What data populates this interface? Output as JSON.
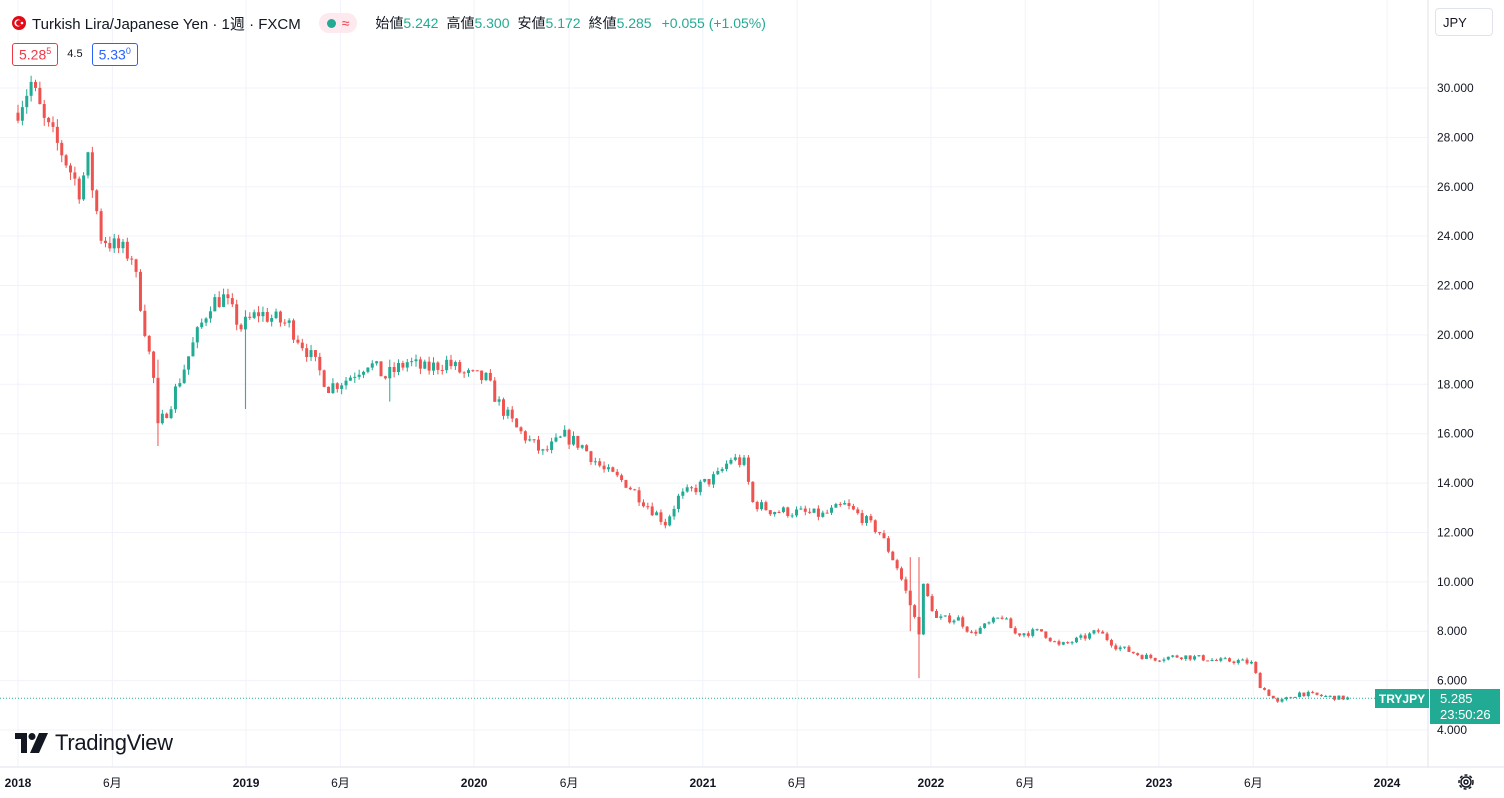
{
  "header": {
    "symbol_title": "Turkish Lira/Japanese Yen · 1週 · FXCM",
    "status_wave": "≈",
    "ohlc": [
      {
        "label": "始値",
        "value": "5.242"
      },
      {
        "label": "高値",
        "value": "5.300"
      },
      {
        "label": "安値",
        "value": "5.172"
      },
      {
        "label": "終値",
        "value": "5.285"
      }
    ],
    "change": "+0.055 (+1.05%)"
  },
  "trade": {
    "sell_main": "5.28",
    "sell_sup": "5",
    "spread": "4.5",
    "buy_main": "5.33",
    "buy_sup": "0"
  },
  "currency_button": "JPY",
  "brand": "TradingView",
  "price_tag": {
    "symbol": "TRYJPY",
    "price": "5.285",
    "countdown": "23:50:26"
  },
  "colors": {
    "up": "#22ab94",
    "down": "#ef5350",
    "grid": "#f0f3fa",
    "last_line": "#22ab94",
    "sell": "#f23645",
    "buy": "#2962ff"
  },
  "chart_data": {
    "type": "candlestick",
    "series_name": "",
    "y_range": [
      3.0,
      32.0
    ],
    "y_ticks": [
      4,
      6,
      8,
      10,
      12,
      14,
      16,
      18,
      20,
      22,
      24,
      26,
      28,
      30
    ],
    "y_tick_labels": [
      "4.000",
      "6.000",
      "8.000",
      "10.000",
      "12.000",
      "14.000",
      "16.000",
      "18.000",
      "20.000",
      "22.000",
      "24.000",
      "26.000",
      "28.000",
      "30.000"
    ],
    "x_range": [
      "2018-01-01",
      "2024-03-01"
    ],
    "x_ticks": [
      {
        "date": "2018-01-01",
        "label": "2018",
        "bold": true
      },
      {
        "date": "2018-06-01",
        "label": "6月",
        "bold": false
      },
      {
        "date": "2019-01-01",
        "label": "2019",
        "bold": true
      },
      {
        "date": "2019-06-01",
        "label": "6月",
        "bold": false
      },
      {
        "date": "2020-01-01",
        "label": "2020",
        "bold": true
      },
      {
        "date": "2020-06-01",
        "label": "6月",
        "bold": false
      },
      {
        "date": "2021-01-01",
        "label": "2021",
        "bold": true
      },
      {
        "date": "2021-06-01",
        "label": "6月",
        "bold": false
      },
      {
        "date": "2022-01-01",
        "label": "2022",
        "bold": true
      },
      {
        "date": "2022-06-01",
        "label": "6月",
        "bold": false
      },
      {
        "date": "2023-01-01",
        "label": "2023",
        "bold": true
      },
      {
        "date": "2023-06-01",
        "label": "6月",
        "bold": false
      },
      {
        "date": "2024-01-01",
        "label": "2024",
        "bold": true
      }
    ],
    "last_price": 5.285,
    "close_anchors": [
      [
        "2018-01-01",
        29.2
      ],
      [
        "2018-01-22",
        30.2
      ],
      [
        "2018-02-12",
        28.6
      ],
      [
        "2018-03-12",
        27.4
      ],
      [
        "2018-04-09",
        25.9
      ],
      [
        "2018-04-23",
        27.0
      ],
      [
        "2018-05-14",
        24.0
      ],
      [
        "2018-06-04",
        23.6
      ],
      [
        "2018-07-02",
        23.2
      ],
      [
        "2018-07-16",
        21.3
      ],
      [
        "2018-08-06",
        18.2
      ],
      [
        "2018-08-13",
        16.2
      ],
      [
        "2018-09-03",
        17.3
      ],
      [
        "2018-10-08",
        19.6
      ],
      [
        "2018-11-05",
        21.3
      ],
      [
        "2018-11-26",
        21.5
      ],
      [
        "2018-12-24",
        20.3
      ],
      [
        "2019-01-21",
        20.9
      ],
      [
        "2019-03-11",
        20.4
      ],
      [
        "2019-04-08",
        19.4
      ],
      [
        "2019-05-13",
        17.9
      ],
      [
        "2019-06-10",
        18.2
      ],
      [
        "2019-07-15",
        18.9
      ],
      [
        "2019-08-12",
        18.3
      ],
      [
        "2019-09-16",
        18.9
      ],
      [
        "2019-10-14",
        18.6
      ],
      [
        "2019-11-18",
        18.9
      ],
      [
        "2019-12-16",
        18.4
      ],
      [
        "2020-01-20",
        18.2
      ],
      [
        "2020-02-10",
        17.2
      ],
      [
        "2020-03-09",
        16.2
      ],
      [
        "2020-04-20",
        15.2
      ],
      [
        "2020-05-25",
        15.9
      ],
      [
        "2020-06-22",
        15.5
      ],
      [
        "2020-07-27",
        14.5
      ],
      [
        "2020-08-31",
        14.0
      ],
      [
        "2020-10-05",
        13.1
      ],
      [
        "2020-11-02",
        12.4
      ],
      [
        "2020-11-23",
        13.4
      ],
      [
        "2020-12-21",
        13.8
      ],
      [
        "2021-01-25",
        14.3
      ],
      [
        "2021-02-15",
        15.0
      ],
      [
        "2021-03-08",
        14.8
      ],
      [
        "2021-03-22",
        13.2
      ],
      [
        "2021-04-19",
        12.9
      ],
      [
        "2021-06-07",
        12.8
      ],
      [
        "2021-07-12",
        12.7
      ],
      [
        "2021-08-16",
        13.1
      ],
      [
        "2021-09-13",
        12.6
      ],
      [
        "2021-10-11",
        12.0
      ],
      [
        "2021-11-08",
        10.6
      ],
      [
        "2021-11-22",
        9.6
      ],
      [
        "2021-12-13",
        8.0
      ],
      [
        "2021-12-20",
        9.8
      ],
      [
        "2022-01-10",
        8.5
      ],
      [
        "2022-02-14",
        8.5
      ],
      [
        "2022-03-07",
        7.9
      ],
      [
        "2022-04-25",
        8.6
      ],
      [
        "2022-05-16",
        7.9
      ],
      [
        "2022-06-27",
        8.0
      ],
      [
        "2022-07-25",
        7.4
      ],
      [
        "2022-08-29",
        7.7
      ],
      [
        "2022-09-26",
        8.0
      ],
      [
        "2022-10-24",
        7.4
      ],
      [
        "2022-12-05",
        7.0
      ],
      [
        "2022-12-26",
        6.9
      ],
      [
        "2023-02-06",
        7.0
      ],
      [
        "2023-03-13",
        6.9
      ],
      [
        "2023-04-03",
        6.8
      ],
      [
        "2023-05-08",
        6.8
      ],
      [
        "2023-05-29",
        6.7
      ],
      [
        "2023-06-12",
        5.8
      ],
      [
        "2023-07-10",
        5.1
      ],
      [
        "2023-08-14",
        5.5
      ],
      [
        "2023-09-11",
        5.4
      ],
      [
        "2023-10-16",
        5.3
      ]
    ]
  }
}
